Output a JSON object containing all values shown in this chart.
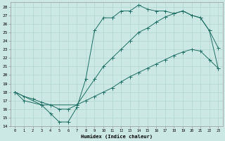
{
  "bg_color": "#cce8e4",
  "grid_color": "#b0d4cf",
  "line_color": "#1e6e64",
  "xlabel": "Humidex (Indice chaleur)",
  "xlim": [
    -0.5,
    23.5
  ],
  "ylim": [
    14,
    28.5
  ],
  "yticks": [
    14,
    15,
    16,
    17,
    18,
    19,
    20,
    21,
    22,
    23,
    24,
    25,
    26,
    27,
    28
  ],
  "xticks": [
    0,
    1,
    2,
    3,
    4,
    5,
    6,
    7,
    8,
    9,
    10,
    11,
    12,
    13,
    14,
    15,
    16,
    17,
    18,
    19,
    20,
    21,
    22,
    23
  ],
  "line1_x": [
    0,
    1,
    3,
    4,
    5,
    6,
    7,
    8,
    9,
    10,
    11,
    12,
    13,
    14,
    15,
    16,
    17,
    18,
    19,
    20,
    21,
    22,
    23
  ],
  "line1_y": [
    18,
    17,
    16.5,
    15.5,
    14.5,
    14.5,
    16.2,
    19.5,
    25.2,
    26.7,
    26.7,
    27.5,
    27.5,
    28.2,
    27.7,
    27.5,
    27.5,
    27.2,
    27.5,
    27.0,
    26.7,
    25.2,
    23.2
  ],
  "line2_x": [
    0,
    3,
    7,
    9,
    10,
    11,
    12,
    13,
    14,
    15,
    16,
    17,
    18,
    19,
    20,
    21,
    22,
    23
  ],
  "line2_y": [
    18,
    16.5,
    16.5,
    19.5,
    21.0,
    22.0,
    23.0,
    24.0,
    25.0,
    25.5,
    26.2,
    26.8,
    27.2,
    27.5,
    27.0,
    26.7,
    25.2,
    20.8
  ],
  "line3_x": [
    0,
    1,
    2,
    3,
    4,
    5,
    6,
    7,
    8,
    9,
    10,
    11,
    12,
    13,
    14,
    15,
    16,
    17,
    18,
    19,
    20,
    21,
    22,
    23
  ],
  "line3_y": [
    18,
    17.5,
    17.2,
    16.8,
    16.5,
    16.0,
    16.0,
    16.5,
    17.0,
    17.5,
    18.0,
    18.5,
    19.2,
    19.8,
    20.3,
    20.8,
    21.3,
    21.8,
    22.3,
    22.7,
    23.0,
    22.8,
    21.8,
    20.8
  ]
}
